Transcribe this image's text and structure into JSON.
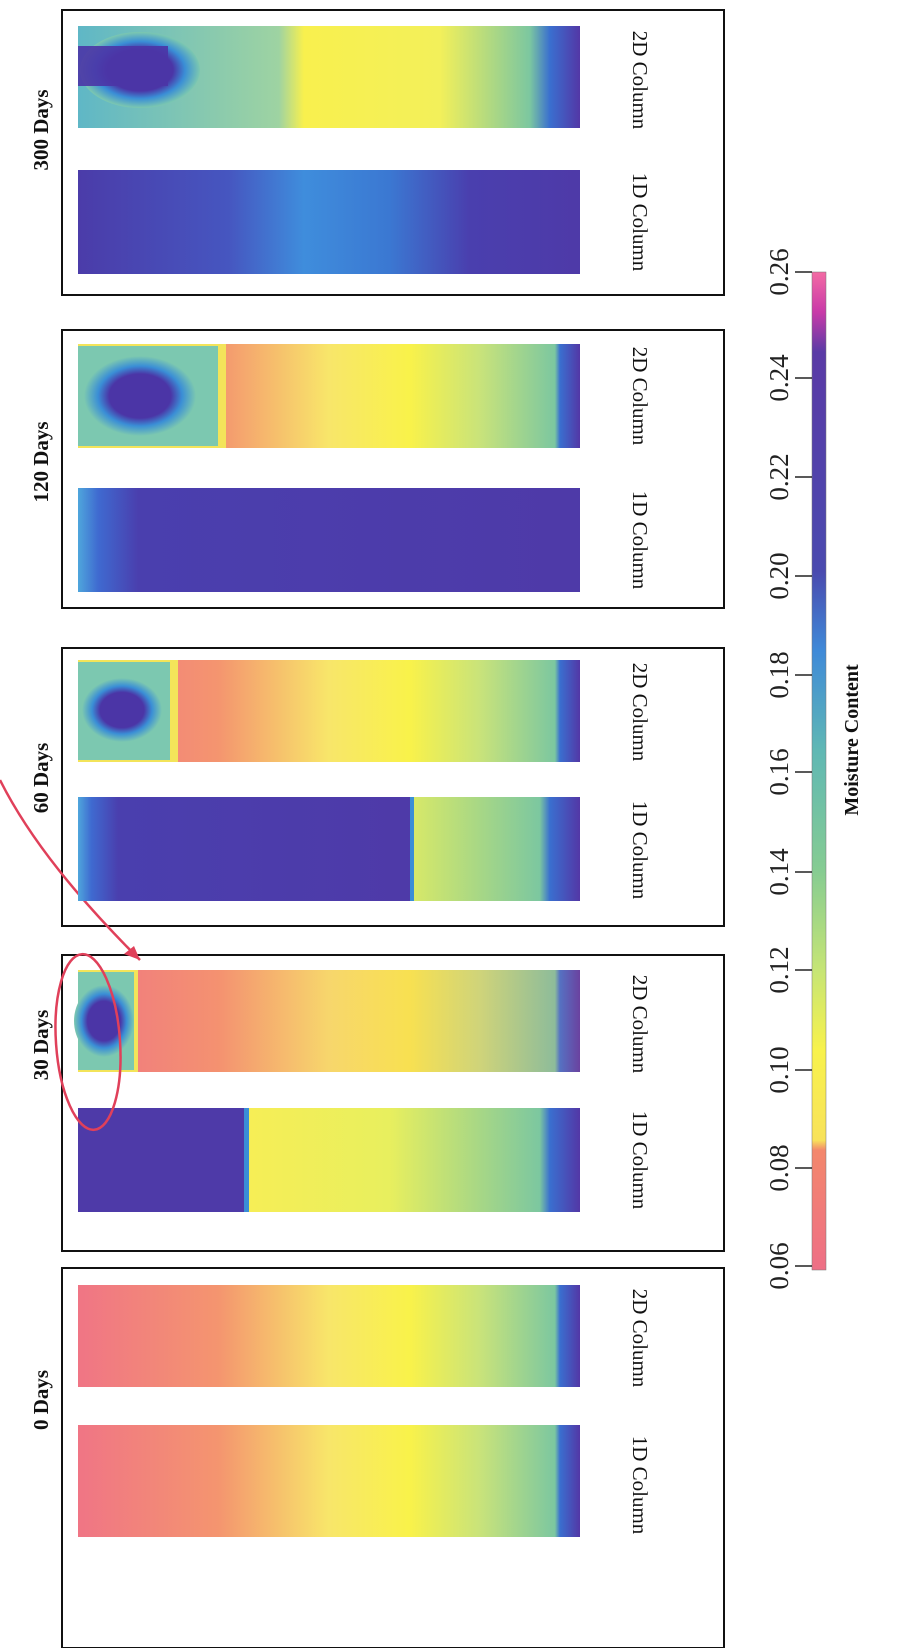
{
  "figure": {
    "panels": [
      {
        "id": "day0",
        "label": "0 Days",
        "columns": [
          {
            "id": "1d",
            "label": "1D Column",
            "state": "initial"
          },
          {
            "id": "2d",
            "label": "2D Column",
            "state": "initial"
          }
        ]
      },
      {
        "id": "day30",
        "label": "30 Days",
        "columns": [
          {
            "id": "1d",
            "label": "1D Column",
            "state": "front",
            "wet_fraction": 0.38
          },
          {
            "id": "2d",
            "label": "2D Column",
            "state": "blob",
            "blob_fraction": 0.12
          }
        ]
      },
      {
        "id": "day60",
        "label": "60 Days",
        "columns": [
          {
            "id": "1d",
            "label": "1D Column",
            "state": "front",
            "wet_fraction": 0.62
          },
          {
            "id": "2d",
            "label": "2D Column",
            "state": "blob",
            "blob_fraction": 0.17
          }
        ]
      },
      {
        "id": "day120",
        "label": "120 Days",
        "columns": [
          {
            "id": "1d",
            "label": "1D Column",
            "state": "wet"
          },
          {
            "id": "2d",
            "label": "2D Column",
            "state": "blob",
            "blob_fraction": 0.22
          }
        ]
      },
      {
        "id": "day300",
        "label": "300 Days",
        "columns": [
          {
            "id": "1d",
            "label": "1D Column",
            "state": "wet_light"
          },
          {
            "id": "2d",
            "label": "2D Column",
            "state": "blob_large",
            "blob_fraction": 0.3
          }
        ]
      }
    ],
    "colorbar": {
      "title": "Moisture Content",
      "ticks": [
        "0.06",
        "0.08",
        "0.10",
        "0.12",
        "0.14",
        "0.16",
        "0.18",
        "0.20",
        "0.22",
        "0.24",
        "0.26"
      ],
      "range": [
        0.06,
        0.26
      ],
      "colors": {
        "pink": "#ee6f86",
        "salmon": "#f3876c",
        "orange": "#f6a86a",
        "yellow": "#f8f24c",
        "yellow_green": "#d8ec6a",
        "green": "#8fcd8f",
        "teal": "#6fbfa9",
        "cyan": "#4fb2d4",
        "blue": "#3a7ed6",
        "indigo": "#4a44ad",
        "purple": "#5a3aa6",
        "magenta": "#c93aa8",
        "hot_pink": "#f36ba4"
      }
    },
    "annotation": {
      "target": "day30-2d-wet-zone",
      "color": "#e0405a"
    }
  }
}
